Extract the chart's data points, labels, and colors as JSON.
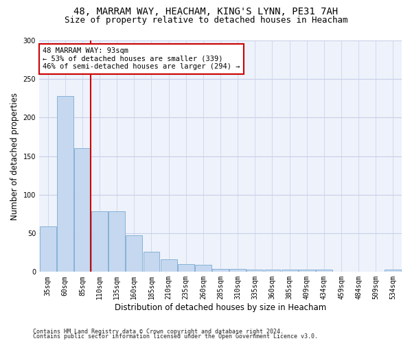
{
  "title_line1": "48, MARRAM WAY, HEACHAM, KING'S LYNN, PE31 7AH",
  "title_line2": "Size of property relative to detached houses in Heacham",
  "xlabel": "Distribution of detached houses by size in Heacham",
  "ylabel": "Number of detached properties",
  "categories": [
    "35sqm",
    "60sqm",
    "85sqm",
    "110sqm",
    "135sqm",
    "160sqm",
    "185sqm",
    "210sqm",
    "235sqm",
    "260sqm",
    "285sqm",
    "310sqm",
    "335sqm",
    "360sqm",
    "385sqm",
    "409sqm",
    "434sqm",
    "459sqm",
    "484sqm",
    "509sqm",
    "534sqm"
  ],
  "values": [
    59,
    228,
    160,
    79,
    79,
    47,
    26,
    16,
    10,
    9,
    4,
    4,
    3,
    3,
    3,
    3,
    3,
    0,
    0,
    0,
    3
  ],
  "bar_color": "#c5d8f0",
  "bar_edge_color": "#7aaad0",
  "vline_color": "#cc0000",
  "annotation_text": "48 MARRAM WAY: 93sqm\n← 53% of detached houses are smaller (339)\n46% of semi-detached houses are larger (294) →",
  "annotation_box_color": "#ffffff",
  "annotation_box_edge_color": "#cc0000",
  "ylim": [
    0,
    300
  ],
  "yticks": [
    0,
    50,
    100,
    150,
    200,
    250,
    300
  ],
  "grid_color": "#c8cfe8",
  "background_color": "#eef2fb",
  "footer_line1": "Contains HM Land Registry data © Crown copyright and database right 2024.",
  "footer_line2": "Contains public sector information licensed under the Open Government Licence v3.0.",
  "title_fontsize": 10,
  "subtitle_fontsize": 9,
  "annot_fontsize": 7.5,
  "tick_fontsize": 7,
  "ylabel_fontsize": 8.5,
  "xlabel_fontsize": 8.5,
  "footer_fontsize": 6
}
